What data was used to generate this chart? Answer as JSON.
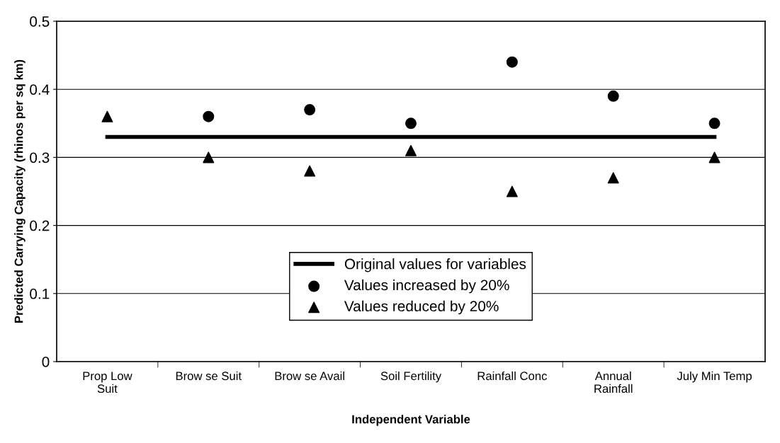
{
  "chart_data": {
    "type": "scatter",
    "xlabel": "Independent Variable",
    "ylabel": "Predicted Carrying Capacity (rhinos per sq km)",
    "categories": [
      "Prop Low\nSuit",
      "Brow se Suit",
      "Brow se Avail",
      "Soil Fertility",
      "Rainfall Conc",
      "Annual\nRainfall",
      "July Min Temp"
    ],
    "series": [
      {
        "name": "Original values for variables",
        "type": "line",
        "color": "#000000",
        "marker": "none",
        "values": [
          0.33,
          0.33,
          0.33,
          0.33,
          0.33,
          0.33,
          0.33
        ]
      },
      {
        "name": "Values increased by 20%",
        "color": "#000000",
        "marker": "circle",
        "values": [
          null,
          0.36,
          0.37,
          0.35,
          0.44,
          0.39,
          0.35
        ]
      },
      {
        "name": "Values reduced by 20%",
        "color": "#000000",
        "marker": "triangle",
        "values": [
          0.36,
          0.3,
          0.28,
          0.31,
          0.25,
          0.27,
          0.3
        ]
      }
    ],
    "ylim": [
      0,
      0.5
    ],
    "yticks": [
      {
        "value": 0,
        "label": "0"
      },
      0.1,
      0.2,
      0.3,
      0.4,
      0.5
    ],
    "grid": "y",
    "legend": "bottom"
  }
}
